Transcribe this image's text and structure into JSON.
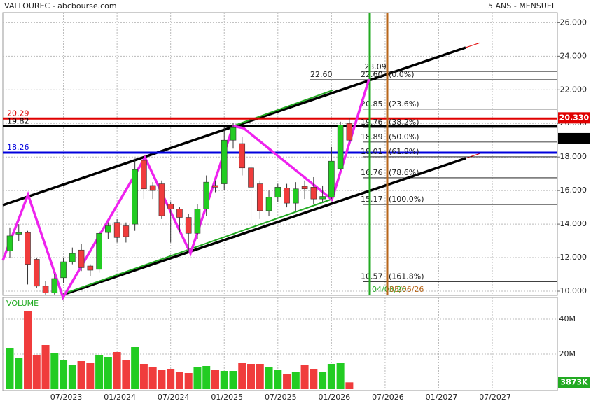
{
  "header": {
    "title": "VALLOUREC - abcbourse.com",
    "period": "5 ANS - MENSUEL"
  },
  "chart_data": [
    {
      "type": "candlestick",
      "categories": [
        null,
        null,
        null,
        null,
        null,
        null,
        "07/2023",
        null,
        null,
        null,
        null,
        null,
        "01/2024",
        null,
        null,
        null,
        null,
        null,
        "07/2024",
        null,
        null,
        null,
        null,
        null,
        "01/2025",
        null,
        null,
        null,
        null,
        null,
        "07/2025",
        null,
        null,
        null,
        null,
        null,
        "01/2026",
        null,
        null,
        null,
        null,
        null,
        "07/2026",
        null,
        null,
        null,
        null,
        null,
        "01/2027",
        null,
        null,
        null,
        null,
        null,
        "07/2027"
      ],
      "open": [
        12.4,
        13.4,
        13.5,
        11.9,
        10.3,
        9.9,
        10.8,
        11.75,
        12.45,
        11.5,
        11.3,
        13.5,
        14.1,
        13.9,
        14.0,
        17.8,
        16.3,
        16.4,
        15.2,
        14.9,
        14.4,
        13.45,
        14.9,
        16.3,
        16.4,
        19.0,
        18.8,
        17.35,
        16.4,
        14.8,
        15.6,
        16.15,
        15.25,
        16.25,
        16.2,
        15.5,
        15.6,
        17.3,
        20.0,
        null,
        null,
        null,
        null,
        null,
        null,
        null,
        null,
        null,
        null,
        null,
        null,
        null,
        null,
        null,
        null
      ],
      "high": [
        13.8,
        14.0,
        13.6,
        12.0,
        10.6,
        11.0,
        12.0,
        12.6,
        12.8,
        11.6,
        13.6,
        14.1,
        14.3,
        14.1,
        17.9,
        17.9,
        16.5,
        16.6,
        15.3,
        15.0,
        14.6,
        15.2,
        16.9,
        16.6,
        19.8,
        20.0,
        19.2,
        17.6,
        16.6,
        16.0,
        16.4,
        16.4,
        16.5,
        16.6,
        16.8,
        16.3,
        18.6,
        20.1,
        20.33,
        null,
        null,
        null,
        null,
        null,
        null,
        null,
        null,
        null,
        null,
        null,
        null,
        null,
        null,
        null,
        null
      ],
      "low": [
        12.0,
        13.0,
        10.4,
        10.2,
        9.8,
        9.8,
        10.5,
        11.6,
        11.2,
        10.9,
        11.1,
        13.1,
        12.9,
        12.9,
        13.6,
        15.5,
        15.5,
        14.3,
        12.9,
        13.5,
        12.3,
        13.1,
        14.5,
        15.9,
        16.0,
        18.5,
        16.9,
        13.7,
        14.3,
        14.5,
        15.3,
        15.0,
        14.8,
        15.5,
        15.2,
        15.3,
        15.5,
        17.2,
        18.9,
        null,
        null,
        null,
        null,
        null,
        null,
        null,
        null,
        null,
        null,
        null,
        null,
        null,
        null,
        null,
        null
      ],
      "close": [
        13.3,
        13.5,
        11.6,
        10.3,
        9.9,
        10.75,
        11.75,
        12.25,
        11.4,
        11.25,
        13.45,
        13.9,
        13.2,
        13.25,
        17.25,
        16.1,
        16.0,
        14.5,
        14.9,
        14.4,
        13.45,
        14.9,
        16.5,
        16.2,
        19.0,
        19.75,
        17.35,
        16.2,
        14.8,
        15.6,
        16.2,
        15.25,
        16.1,
        16.1,
        15.5,
        15.65,
        17.75,
        19.9,
        19.0,
        null,
        null,
        null,
        null,
        null,
        null,
        null,
        null,
        null,
        null,
        null,
        null,
        null,
        null,
        null,
        null
      ],
      "up_color": "#22cc22",
      "down_color": "#f03c3c",
      "ylim": [
        9.75,
        26.6
      ],
      "yticks": [
        {
          "value": 10,
          "label": "10.000"
        },
        {
          "value": 12,
          "label": "12.000"
        },
        {
          "value": 14,
          "label": "14.000"
        },
        {
          "value": 16,
          "label": "16.000"
        },
        {
          "value": 18,
          "label": "18.000"
        },
        {
          "value": 20,
          "label": "20.000"
        },
        {
          "value": 22,
          "label": "22.000"
        },
        {
          "value": 24,
          "label": "24.000"
        },
        {
          "value": 26,
          "label": "26.000"
        }
      ],
      "grid": true,
      "levels": [
        {
          "value": 20.29,
          "color": "#e00000"
        },
        {
          "value": 19.82,
          "color": "#000000"
        },
        {
          "value": 18.26,
          "color": "#0000dd"
        }
      ],
      "last_prices": [
        {
          "value": 20.33,
          "label": "20.330",
          "color": "#e00000"
        },
        {
          "value": 19.095,
          "color": "#000000"
        }
      ],
      "fibonacci": {
        "high": 23.09,
        "start": {
          "value": 22.6,
          "label": "22.60"
        },
        "levels": [
          {
            "value": 22.6,
            "label": "22.60"
          },
          20.85,
          19.76,
          18.89,
          18.01,
          16.76,
          15.17,
          10.57
        ],
        "percents": [
          "(0.0%)",
          "(23.6%)",
          "(38.2%)",
          "(50.0%)",
          "(61.8%)",
          "(78.6%)",
          "(100.0%)",
          "(161.8%)"
        ]
      },
      "markers": [
        {
          "label": "04/03/26",
          "color": "#22aa22"
        },
        {
          "label": "05/06/26",
          "color": "#b8661a"
        }
      ]
    },
    {
      "type": "volume",
      "title": "VOLUME",
      "values": [
        23.6,
        17.6,
        44.4,
        19.6,
        25.2,
        20.4,
        16.4,
        14,
        16,
        15.2,
        19.6,
        18.4,
        21.2,
        16.4,
        24,
        14.4,
        12.8,
        10.8,
        11.6,
        10,
        9.2,
        12.4,
        13.2,
        11.2,
        10.4,
        10.4,
        14.8,
        14.4,
        14.4,
        12.4,
        10.8,
        8.4,
        10,
        13.6,
        11.6,
        9.6,
        14.4,
        15.2,
        3.873,
        null,
        null,
        null,
        null,
        null,
        null,
        null,
        null,
        null,
        null,
        null,
        null,
        null,
        null,
        null,
        null
      ],
      "ylim": [
        0,
        52.4
      ],
      "yticks": [
        {
          "value": 20,
          "label": "20M"
        },
        {
          "value": 40,
          "label": "40M"
        }
      ],
      "last": {
        "value": 3.873,
        "label": "3873K"
      }
    }
  ]
}
